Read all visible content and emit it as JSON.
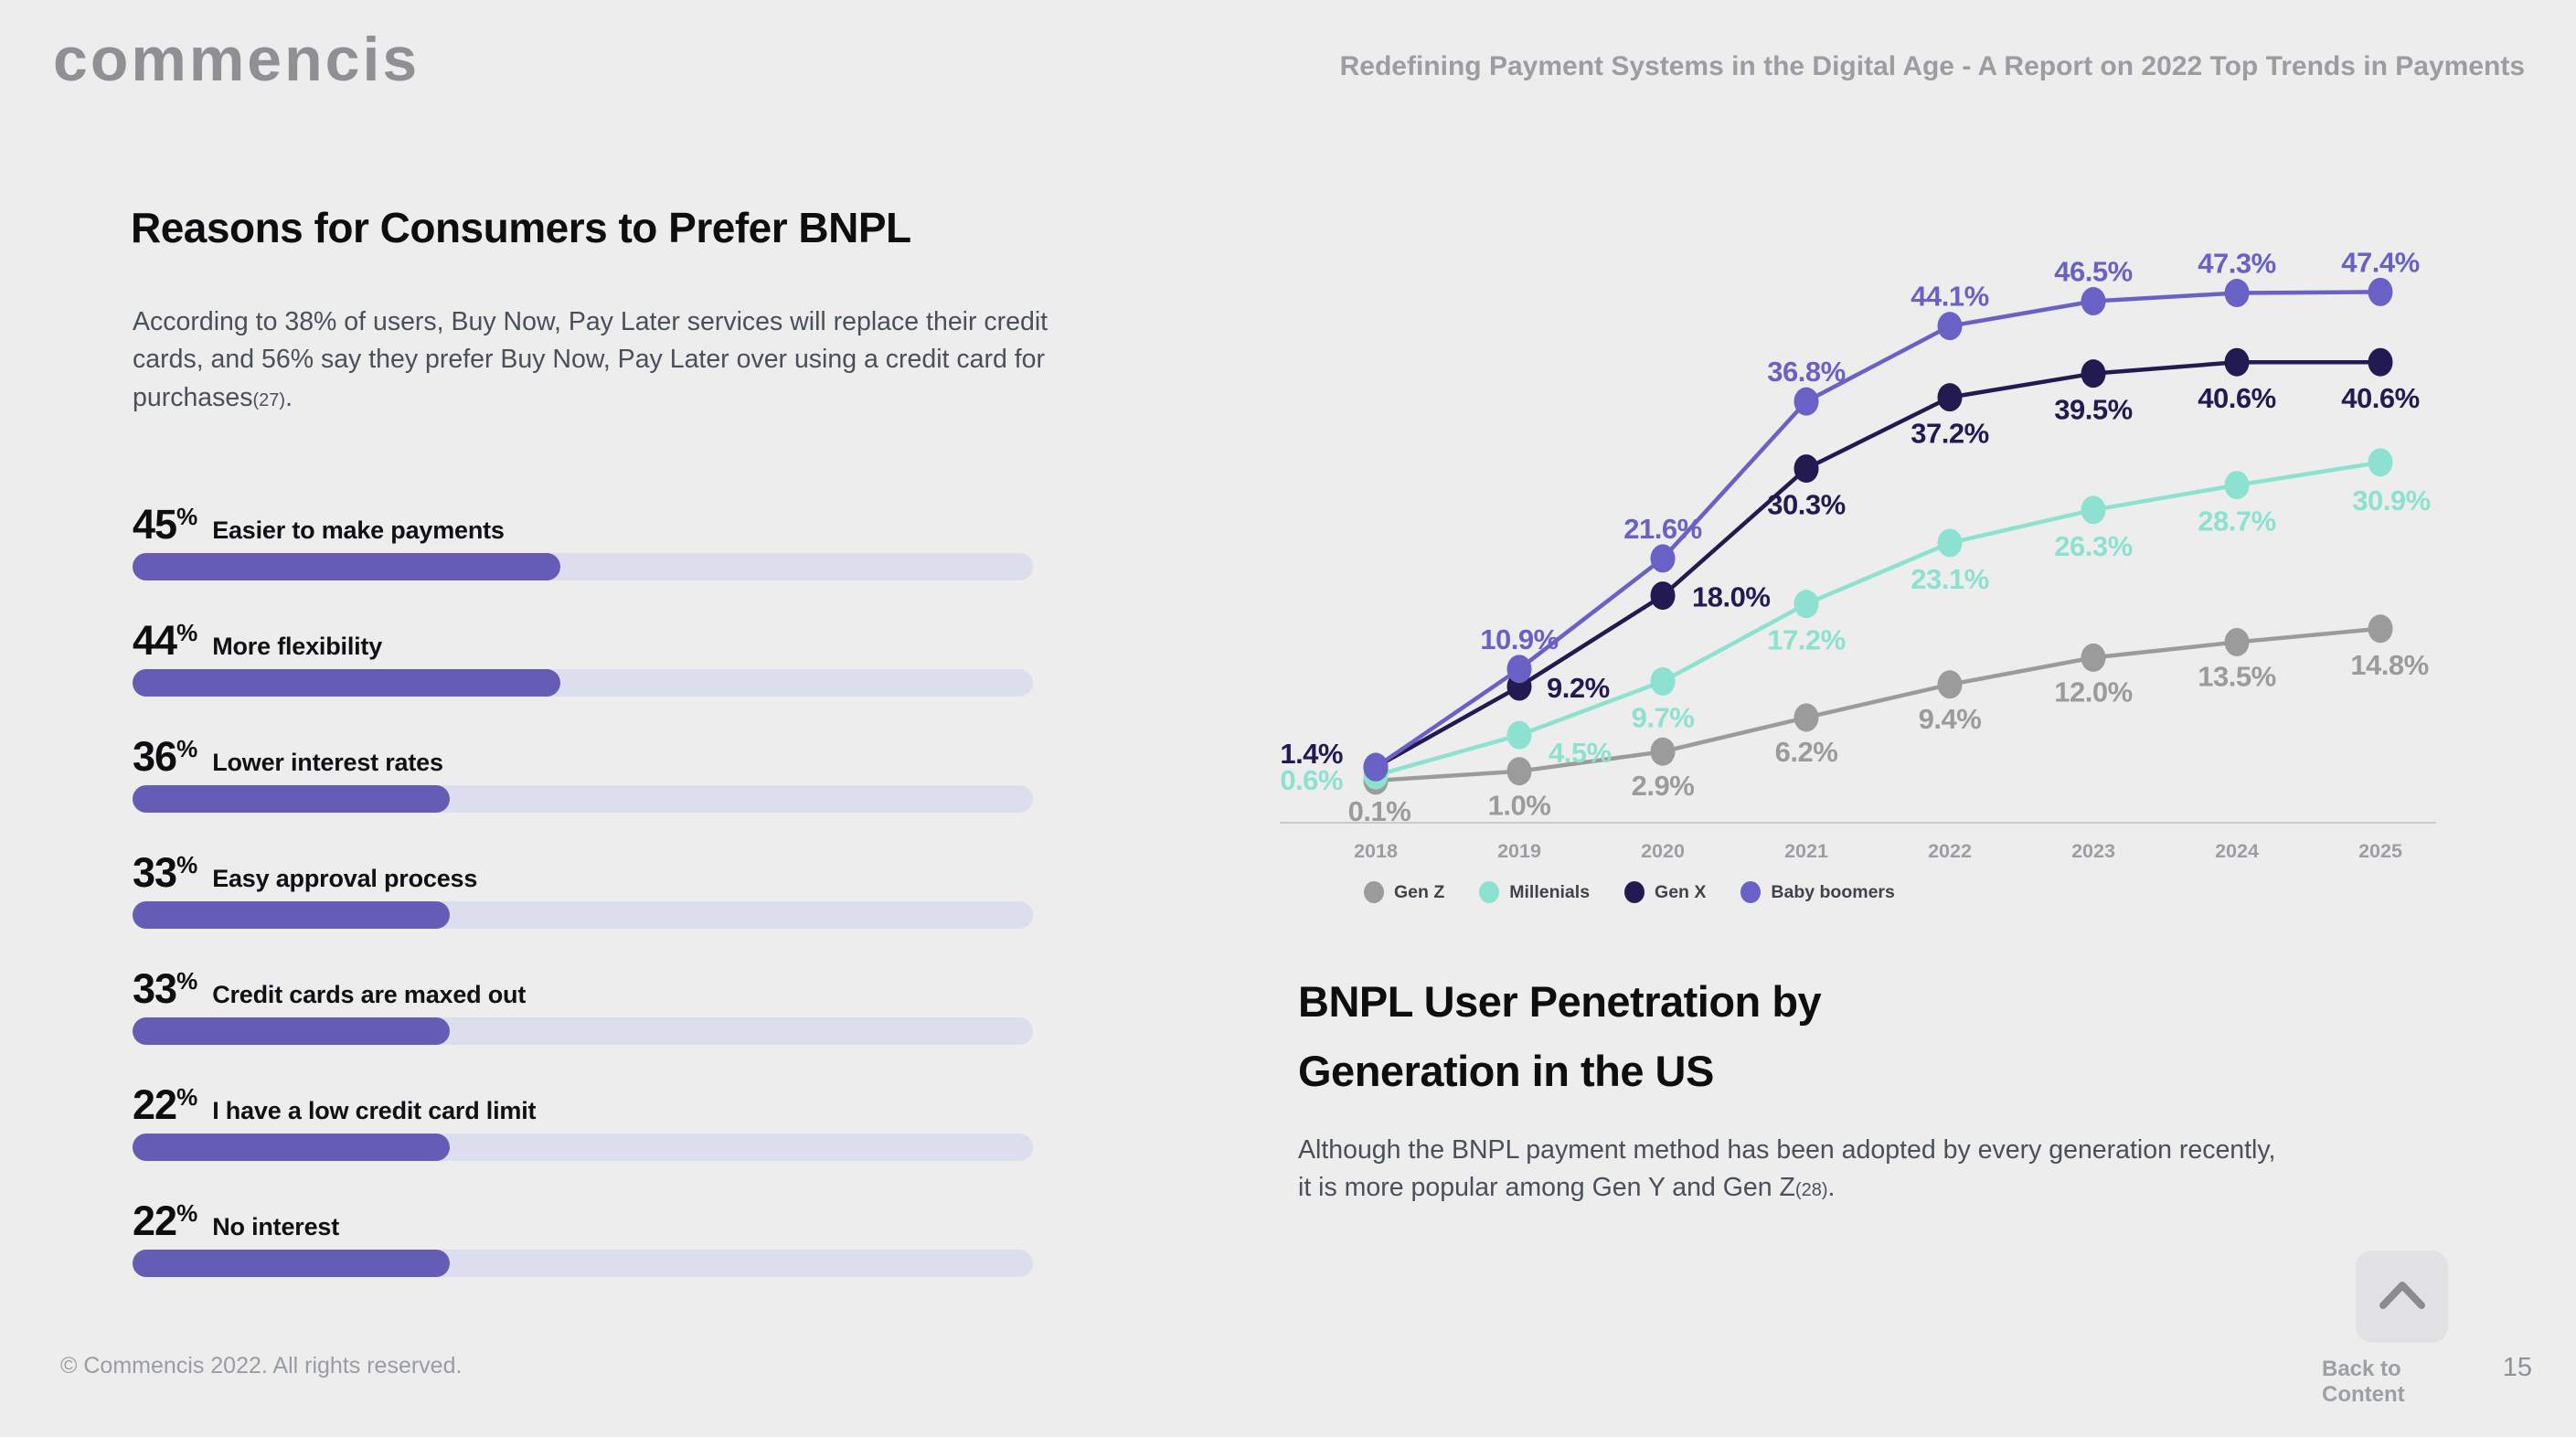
{
  "header": {
    "logo_text": "commencis",
    "report_title": "Redefining Payment Systems in the Digital Age - A Report on 2022 Top Trends in Payments"
  },
  "chart_data": [
    {
      "id": "reasons",
      "type": "bar",
      "title": "Reasons for Consumers to Prefer BNPL",
      "description": "According to 38% of users, Buy Now, Pay Later services will replace their credit cards, and 56% say they prefer Buy Now, Pay Later over using a credit card for purchases",
      "description_ref": "(27)",
      "description_suffix": ".",
      "categories": [
        "Easier to make payments",
        "More flexibility",
        "Lower interest rates",
        "Easy approval process",
        "Credit cards are maxed out",
        "I have a low credit card limit",
        "No interest"
      ],
      "values": [
        45,
        44,
        36,
        33,
        33,
        22,
        22
      ],
      "unit": "%",
      "bar_display_pct": [
        47.5,
        47.5,
        35.2,
        35.2,
        35.2,
        35.2,
        35.2
      ],
      "orientation": "horizontal",
      "colors": {
        "fill": "#655CB5",
        "track": "#DCDEED"
      }
    },
    {
      "id": "penetration",
      "type": "line",
      "title": "BNPL User Penetration by Generation in the US",
      "description": "Although the BNPL payment method has been adopted by every generation recently, it is more popular among Gen Y and Gen Z",
      "description_ref": "(28)",
      "description_suffix": ".",
      "categories": [
        "2018",
        "2019",
        "2020",
        "2021",
        "2022",
        "2023",
        "2024",
        "2025"
      ],
      "series": [
        {
          "name": "Gen Z",
          "color": "#9B9B9C",
          "values": [
            0.1,
            1.0,
            2.9,
            6.2,
            9.4,
            12.0,
            13.5,
            14.8
          ],
          "labels": [
            "0.1%",
            "1.0%",
            "2.9%",
            "6.2%",
            "9.4%",
            "12.0%",
            "13.5%",
            "14.8%"
          ]
        },
        {
          "name": "Millenials",
          "color": "#8DE1D0",
          "values": [
            0.6,
            4.5,
            9.7,
            17.2,
            23.1,
            26.3,
            28.7,
            30.9
          ],
          "labels": [
            "0.6%",
            "4.5%",
            "9.7%",
            "17.2%",
            "23.1%",
            "26.3%",
            "28.7%",
            "30.9%"
          ]
        },
        {
          "name": "Gen X",
          "color": "#221B52",
          "values": [
            1.4,
            9.2,
            18.0,
            30.3,
            37.2,
            39.5,
            40.6,
            40.6
          ],
          "labels": [
            "1.4%",
            "9.2%",
            "18.0%",
            "30.3%",
            "37.2%",
            "39.5%",
            "40.6%",
            "40.6%"
          ]
        },
        {
          "name": "Baby boomers",
          "color": "#6A61C6",
          "values": [
            1.4,
            10.9,
            21.6,
            36.8,
            44.1,
            46.5,
            47.3,
            47.4
          ],
          "labels": [
            null,
            "10.9%",
            "21.6%",
            "36.8%",
            "44.1%",
            "46.5%",
            "47.3%",
            "47.4%"
          ]
        }
      ],
      "ylim": [
        0,
        50
      ],
      "grid": false,
      "legend_position": "bottom",
      "axis_color": "#C9CACC",
      "tick_color": "#9B9EA2"
    }
  ],
  "footer": {
    "copyright": "© Commencis 2022. All rights reserved.",
    "back_to_content": "Back to Content",
    "page_number": "15"
  }
}
